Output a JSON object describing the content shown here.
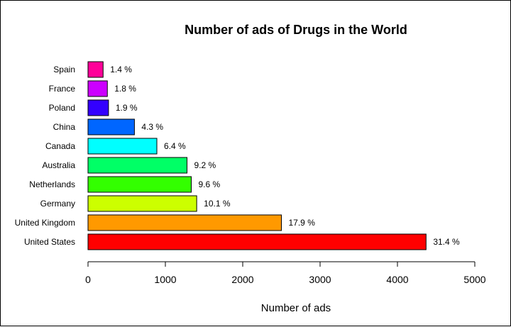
{
  "chart_data": {
    "type": "bar",
    "orientation": "horizontal",
    "title": "Number of ads of Drugs in the World",
    "xlabel": "Number of ads",
    "ylabel": "",
    "xlim": [
      0,
      5000
    ],
    "x_ticks": [
      0,
      1000,
      2000,
      3000,
      4000,
      5000
    ],
    "grid": false,
    "categories": [
      "Spain",
      "France",
      "Poland",
      "China",
      "Canada",
      "Australia",
      "Netherlands",
      "Germany",
      "United Kingdom",
      "United States"
    ],
    "values": [
      195,
      250,
      265,
      600,
      890,
      1280,
      1335,
      1405,
      2500,
      4370
    ],
    "value_labels": [
      "1.4 %",
      "1.8 %",
      "1.9 %",
      "4.3 %",
      "6.4 %",
      "9.2 %",
      "9.6 %",
      "10.1 %",
      "17.9 %",
      "31.4 %"
    ],
    "colors": [
      "#FF0099",
      "#CC00FF",
      "#3300FF",
      "#0066FF",
      "#00FFFF",
      "#00FF66",
      "#33FF00",
      "#CCFF00",
      "#FF9900",
      "#FF0000"
    ]
  }
}
